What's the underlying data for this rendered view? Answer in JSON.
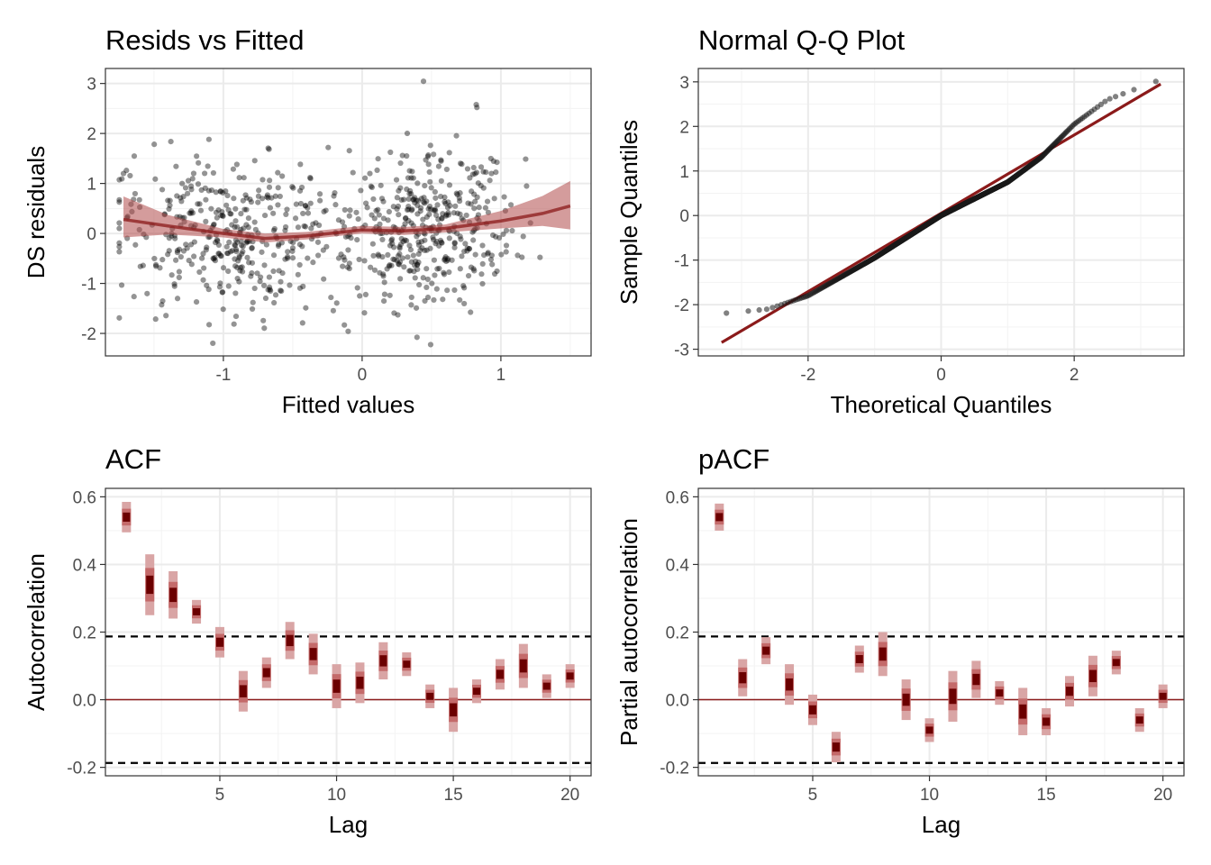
{
  "colors": {
    "accent": "#8b1a1a",
    "ribbon": "#b04a4a",
    "band_outer": "#d9a5a5",
    "band_mid": "#c46a6a",
    "band_inner": "#6b0000",
    "points": "#000000"
  },
  "chart_data": [
    {
      "type": "scatter",
      "title": "Resids vs Fitted",
      "xlabel": "Fitted values",
      "ylabel": "DS residuals",
      "xlim": [
        -1.85,
        1.65
      ],
      "ylim": [
        -2.45,
        3.3
      ],
      "xticks": [
        -1,
        0,
        1
      ],
      "xtick_labels": [
        "-1",
        "0",
        "1"
      ],
      "yticks": [
        -2,
        -1,
        0,
        1,
        2,
        3
      ],
      "ytick_labels": [
        "-2",
        "-1",
        "0",
        "1",
        "2",
        "3"
      ],
      "grid": true,
      "n_points": 800,
      "trend": {
        "x": [
          -1.72,
          -1.4,
          -1.0,
          -0.7,
          -0.4,
          0.0,
          0.3,
          0.6,
          1.0,
          1.3,
          1.5
        ],
        "y": [
          0.28,
          0.15,
          0.0,
          -0.1,
          -0.05,
          0.07,
          0.05,
          0.1,
          0.25,
          0.4,
          0.55
        ],
        "lower": [
          -0.08,
          -0.02,
          -0.08,
          -0.18,
          -0.12,
          0.0,
          -0.03,
          0.02,
          0.1,
          0.15,
          0.08
        ],
        "upper": [
          0.74,
          0.37,
          0.09,
          0.0,
          0.03,
          0.15,
          0.13,
          0.18,
          0.45,
          0.75,
          1.05
        ]
      }
    },
    {
      "type": "scatter",
      "title": "Normal Q-Q Plot",
      "xlabel": "Theoretical Quantiles",
      "ylabel": "Sample Quantiles",
      "xlim": [
        -3.65,
        3.65
      ],
      "ylim": [
        -3.15,
        3.3
      ],
      "xticks": [
        -2,
        0,
        2
      ],
      "xtick_labels": [
        "-2",
        "0",
        "2"
      ],
      "yticks": [
        -3,
        -2,
        -1,
        0,
        1,
        2,
        3
      ],
      "ytick_labels": [
        "-3",
        "-2",
        "-1",
        "0",
        "1",
        "2",
        "3"
      ],
      "grid": true,
      "n_points": 800,
      "reference_line": {
        "x": [
          -3.3,
          3.3
        ],
        "y": [
          -2.85,
          2.95
        ]
      },
      "sample_quantile_anchors": {
        "x": [
          -3.3,
          -2.6,
          -2.0,
          -1.0,
          0.0,
          1.0,
          1.5,
          2.0,
          2.5,
          3.3
        ],
        "y": [
          -2.2,
          -2.1,
          -1.8,
          -0.95,
          0.0,
          0.75,
          1.3,
          2.05,
          2.6,
          3.05
        ]
      }
    },
    {
      "type": "bar",
      "title": "ACF",
      "xlabel": "Lag",
      "ylabel": "Autocorrelation",
      "xlim": [
        0.1,
        20.9
      ],
      "ylim": [
        -0.225,
        0.625
      ],
      "xticks": [
        5,
        10,
        15,
        20
      ],
      "xtick_labels": [
        "5",
        "10",
        "15",
        "20"
      ],
      "yticks": [
        -0.2,
        0.0,
        0.2,
        0.4,
        0.6
      ],
      "ytick_labels": [
        "-0.2",
        "0.0",
        "0.2",
        "0.4",
        "0.6"
      ],
      "grid": true,
      "significance_bounds": [
        0.187,
        -0.187
      ],
      "lags": [
        1,
        2,
        3,
        4,
        5,
        6,
        7,
        8,
        9,
        10,
        11,
        12,
        13,
        14,
        15,
        16,
        17,
        18,
        19,
        20
      ],
      "values": [
        0.54,
        0.34,
        0.31,
        0.26,
        0.17,
        0.025,
        0.08,
        0.175,
        0.135,
        0.04,
        0.05,
        0.115,
        0.105,
        0.01,
        -0.03,
        0.025,
        0.075,
        0.1,
        0.04,
        0.07
      ],
      "half_widths": [
        0.045,
        0.09,
        0.07,
        0.035,
        0.045,
        0.06,
        0.045,
        0.055,
        0.06,
        0.065,
        0.06,
        0.055,
        0.035,
        0.035,
        0.065,
        0.035,
        0.045,
        0.065,
        0.035,
        0.035
      ]
    },
    {
      "type": "bar",
      "title": "pACF",
      "xlabel": "Lag",
      "ylabel": "Partial autocorrelation",
      "xlim": [
        0.1,
        20.9
      ],
      "ylim": [
        -0.225,
        0.625
      ],
      "xticks": [
        5,
        10,
        15,
        20
      ],
      "xtick_labels": [
        "5",
        "10",
        "15",
        "20"
      ],
      "yticks": [
        -0.2,
        0.0,
        0.2,
        0.4,
        0.6
      ],
      "ytick_labels": [
        "-0.2",
        "0.0",
        "0.2",
        "0.4",
        "0.6"
      ],
      "grid": true,
      "significance_bounds": [
        0.187,
        -0.187
      ],
      "lags": [
        1,
        2,
        3,
        4,
        5,
        6,
        7,
        8,
        9,
        10,
        11,
        12,
        13,
        14,
        15,
        16,
        17,
        18,
        19,
        20
      ],
      "values": [
        0.54,
        0.065,
        0.145,
        0.045,
        -0.03,
        -0.14,
        0.12,
        0.135,
        0.0,
        -0.09,
        0.01,
        0.06,
        0.02,
        -0.035,
        -0.065,
        0.025,
        0.07,
        0.11,
        -0.06,
        0.01
      ],
      "half_widths": [
        0.04,
        0.055,
        0.04,
        0.06,
        0.045,
        0.045,
        0.04,
        0.065,
        0.06,
        0.035,
        0.075,
        0.055,
        0.035,
        0.07,
        0.04,
        0.045,
        0.06,
        0.035,
        0.035,
        0.035
      ]
    }
  ]
}
